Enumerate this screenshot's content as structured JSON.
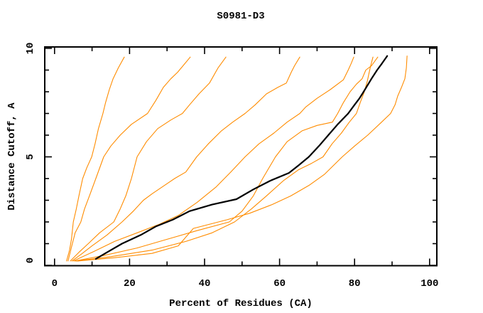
{
  "page": {
    "background": "#ffffff"
  },
  "chart_data": {
    "type": "line",
    "title": "S0981-D3",
    "xlabel": "Percent of Residues (CA)",
    "ylabel": "Distance Cutoff, A",
    "xlim": [
      -2.6,
      102
    ],
    "ylim": [
      0,
      10.07
    ],
    "grid": false,
    "legend": "none",
    "x_ticks": {
      "major": [
        0,
        20,
        40,
        60,
        80,
        100
      ],
      "labels": [
        "0",
        "20",
        "40",
        "60",
        "80",
        "100"
      ],
      "minor": [
        10,
        30,
        50,
        70,
        90
      ]
    },
    "y_ticks": {
      "major": [
        0,
        5,
        10
      ],
      "labels": [
        "0",
        "5",
        "10"
      ],
      "minor": [
        1,
        2,
        3,
        4,
        6,
        7,
        8,
        9
      ]
    },
    "colors": {
      "model_curve": "#ff8c00",
      "highlight_curve": "#000000",
      "axis": "#000000"
    },
    "series": [
      {
        "name": "model-curve-1",
        "color": "#ff8c00",
        "width": 1.1,
        "points": [
          [
            3.2,
            0.2
          ],
          [
            4.0,
            0.7
          ],
          [
            4.5,
            1.2
          ],
          [
            5.0,
            2.0
          ],
          [
            5.8,
            2.6
          ],
          [
            6.5,
            3.2
          ],
          [
            7.5,
            4.0
          ],
          [
            8.6,
            4.5
          ],
          [
            9.9,
            5.0
          ],
          [
            10.8,
            5.6
          ],
          [
            11.7,
            6.3
          ],
          [
            12.9,
            7.0
          ],
          [
            13.6,
            7.5
          ],
          [
            14.6,
            8.1
          ],
          [
            15.6,
            8.6
          ],
          [
            17.0,
            9.1
          ],
          [
            18.6,
            9.6
          ]
        ]
      },
      {
        "name": "model-curve-2",
        "color": "#ff8c00",
        "width": 1.1,
        "points": [
          [
            3.6,
            0.2
          ],
          [
            4.6,
            0.9
          ],
          [
            5.5,
            1.5
          ],
          [
            7.0,
            2.0
          ],
          [
            8.0,
            2.6
          ],
          [
            9.5,
            3.3
          ],
          [
            11.0,
            4.0
          ],
          [
            13.1,
            5.0
          ],
          [
            15.0,
            5.5
          ],
          [
            17.5,
            6.0
          ],
          [
            20.5,
            6.5
          ],
          [
            24.8,
            7.0
          ],
          [
            27.0,
            7.6
          ],
          [
            29.0,
            8.2
          ],
          [
            31.0,
            8.6
          ],
          [
            32.8,
            8.9
          ],
          [
            34.5,
            9.25
          ],
          [
            36.2,
            9.6
          ]
        ]
      },
      {
        "name": "model-curve-3",
        "color": "#ff8c00",
        "width": 1.1,
        "points": [
          [
            4.2,
            0.2
          ],
          [
            6.5,
            0.6
          ],
          [
            9.0,
            1.0
          ],
          [
            12.0,
            1.5
          ],
          [
            15.8,
            2.0
          ],
          [
            17.5,
            2.6
          ],
          [
            19.0,
            3.2
          ],
          [
            20.5,
            4.0
          ],
          [
            22.0,
            5.0
          ],
          [
            24.5,
            5.7
          ],
          [
            27.5,
            6.3
          ],
          [
            31.0,
            6.7
          ],
          [
            34.1,
            7.0
          ],
          [
            36.0,
            7.4
          ],
          [
            38.5,
            7.9
          ],
          [
            41.3,
            8.4
          ],
          [
            43.6,
            9.1
          ],
          [
            45.7,
            9.6
          ]
        ]
      },
      {
        "name": "model-curve-4",
        "color": "#ff8c00",
        "width": 1.1,
        "points": [
          [
            4.6,
            0.2
          ],
          [
            7.0,
            0.5
          ],
          [
            10.0,
            0.9
          ],
          [
            14.0,
            1.4
          ],
          [
            18.0,
            2.0
          ],
          [
            21.0,
            2.5
          ],
          [
            23.7,
            3.0
          ],
          [
            26.0,
            3.3
          ],
          [
            28.6,
            3.6
          ],
          [
            32.0,
            4.0
          ],
          [
            35.0,
            4.3
          ],
          [
            37.9,
            5.0
          ],
          [
            41.0,
            5.6
          ],
          [
            44.5,
            6.2
          ],
          [
            47.5,
            6.6
          ],
          [
            50.8,
            7.0
          ],
          [
            53.5,
            7.4
          ],
          [
            56.5,
            7.9
          ],
          [
            59.5,
            8.2
          ],
          [
            61.8,
            8.4
          ],
          [
            63.1,
            8.9
          ],
          [
            64.0,
            9.2
          ],
          [
            65.4,
            9.6
          ]
        ]
      },
      {
        "name": "model-curve-5",
        "color": "#ff8c00",
        "width": 1.1,
        "points": [
          [
            5.0,
            0.2
          ],
          [
            10.0,
            0.6
          ],
          [
            16.0,
            1.1
          ],
          [
            22.0,
            1.5
          ],
          [
            28.0,
            1.9
          ],
          [
            33.0,
            2.3
          ],
          [
            38.0,
            2.9
          ],
          [
            43.0,
            3.6
          ],
          [
            47.0,
            4.3
          ],
          [
            50.8,
            5.0
          ],
          [
            54.5,
            5.6
          ],
          [
            58.5,
            6.1
          ],
          [
            62.0,
            6.6
          ],
          [
            65.4,
            7.0
          ],
          [
            67.0,
            7.3
          ],
          [
            70.0,
            7.7
          ],
          [
            73.5,
            8.1
          ],
          [
            77.0,
            8.55
          ],
          [
            78.3,
            9.0
          ],
          [
            79.1,
            9.3
          ],
          [
            79.8,
            9.6
          ]
        ]
      },
      {
        "name": "model-curve-6",
        "color": "#ff8c00",
        "width": 1.1,
        "points": [
          [
            5.4,
            0.2
          ],
          [
            13.0,
            0.45
          ],
          [
            22.0,
            0.8
          ],
          [
            30.0,
            1.2
          ],
          [
            38.0,
            1.6
          ],
          [
            46.6,
            2.0
          ],
          [
            50.0,
            2.5
          ],
          [
            53.0,
            3.2
          ],
          [
            55.5,
            4.0
          ],
          [
            58.9,
            5.0
          ],
          [
            62.0,
            5.7
          ],
          [
            66.0,
            6.2
          ],
          [
            70.0,
            6.45
          ],
          [
            74.1,
            6.6
          ],
          [
            75.5,
            7.0
          ],
          [
            77.0,
            7.5
          ],
          [
            78.8,
            8.0
          ],
          [
            80.5,
            8.35
          ],
          [
            82.0,
            8.6
          ],
          [
            83.0,
            9.0
          ],
          [
            84.5,
            9.2
          ],
          [
            86.2,
            9.6
          ]
        ]
      },
      {
        "name": "model-curve-7",
        "color": "#ff8c00",
        "width": 1.1,
        "points": [
          [
            5.8,
            0.2
          ],
          [
            15.0,
            0.4
          ],
          [
            26.0,
            0.7
          ],
          [
            35.0,
            1.1
          ],
          [
            42.0,
            1.5
          ],
          [
            48.0,
            2.0
          ],
          [
            52.5,
            2.6
          ],
          [
            56.5,
            3.2
          ],
          [
            61.0,
            3.9
          ],
          [
            65.0,
            4.4
          ],
          [
            68.5,
            4.7
          ],
          [
            71.6,
            5.0
          ],
          [
            74.0,
            5.6
          ],
          [
            76.5,
            6.1
          ],
          [
            78.6,
            6.6
          ],
          [
            80.5,
            7.0
          ],
          [
            81.5,
            7.5
          ],
          [
            82.6,
            8.0
          ],
          [
            83.4,
            8.5
          ],
          [
            83.9,
            8.9
          ],
          [
            84.3,
            9.2
          ],
          [
            84.9,
            9.6
          ]
        ]
      },
      {
        "name": "model-curve-8",
        "color": "#ff8c00",
        "width": 1.1,
        "points": [
          [
            6.2,
            0.2
          ],
          [
            16.0,
            0.35
          ],
          [
            26.0,
            0.55
          ],
          [
            33.0,
            0.9
          ],
          [
            37.0,
            1.7
          ],
          [
            46.0,
            2.1
          ],
          [
            52.0,
            2.4
          ],
          [
            58.0,
            2.8
          ],
          [
            63.0,
            3.2
          ],
          [
            68.0,
            3.7
          ],
          [
            72.0,
            4.2
          ],
          [
            76.7,
            5.0
          ],
          [
            80.0,
            5.5
          ],
          [
            83.5,
            6.0
          ],
          [
            87.2,
            6.6
          ],
          [
            89.6,
            7.0
          ],
          [
            90.8,
            7.4
          ],
          [
            91.5,
            7.8
          ],
          [
            92.5,
            8.2
          ],
          [
            93.4,
            8.6
          ],
          [
            93.8,
            9.1
          ],
          [
            94.0,
            9.65
          ]
        ]
      },
      {
        "name": "highlighted-curve",
        "color": "#000000",
        "width": 2.2,
        "points": [
          [
            11.0,
            0.3
          ],
          [
            14.0,
            0.6
          ],
          [
            18.0,
            1.0
          ],
          [
            23.0,
            1.4
          ],
          [
            27.1,
            1.8
          ],
          [
            31.5,
            2.1
          ],
          [
            36.0,
            2.5
          ],
          [
            42.0,
            2.8
          ],
          [
            48.5,
            3.05
          ],
          [
            53.0,
            3.5
          ],
          [
            57.5,
            3.9
          ],
          [
            62.5,
            4.26
          ],
          [
            65.0,
            4.6
          ],
          [
            67.8,
            5.0
          ],
          [
            70.5,
            5.5
          ],
          [
            73.0,
            6.0
          ],
          [
            75.5,
            6.5
          ],
          [
            78.3,
            7.0
          ],
          [
            80.0,
            7.4
          ],
          [
            81.3,
            7.7
          ],
          [
            82.4,
            8.0
          ],
          [
            84.5,
            8.6
          ],
          [
            86.0,
            9.0
          ],
          [
            87.3,
            9.3
          ],
          [
            88.7,
            9.65
          ]
        ]
      }
    ]
  }
}
